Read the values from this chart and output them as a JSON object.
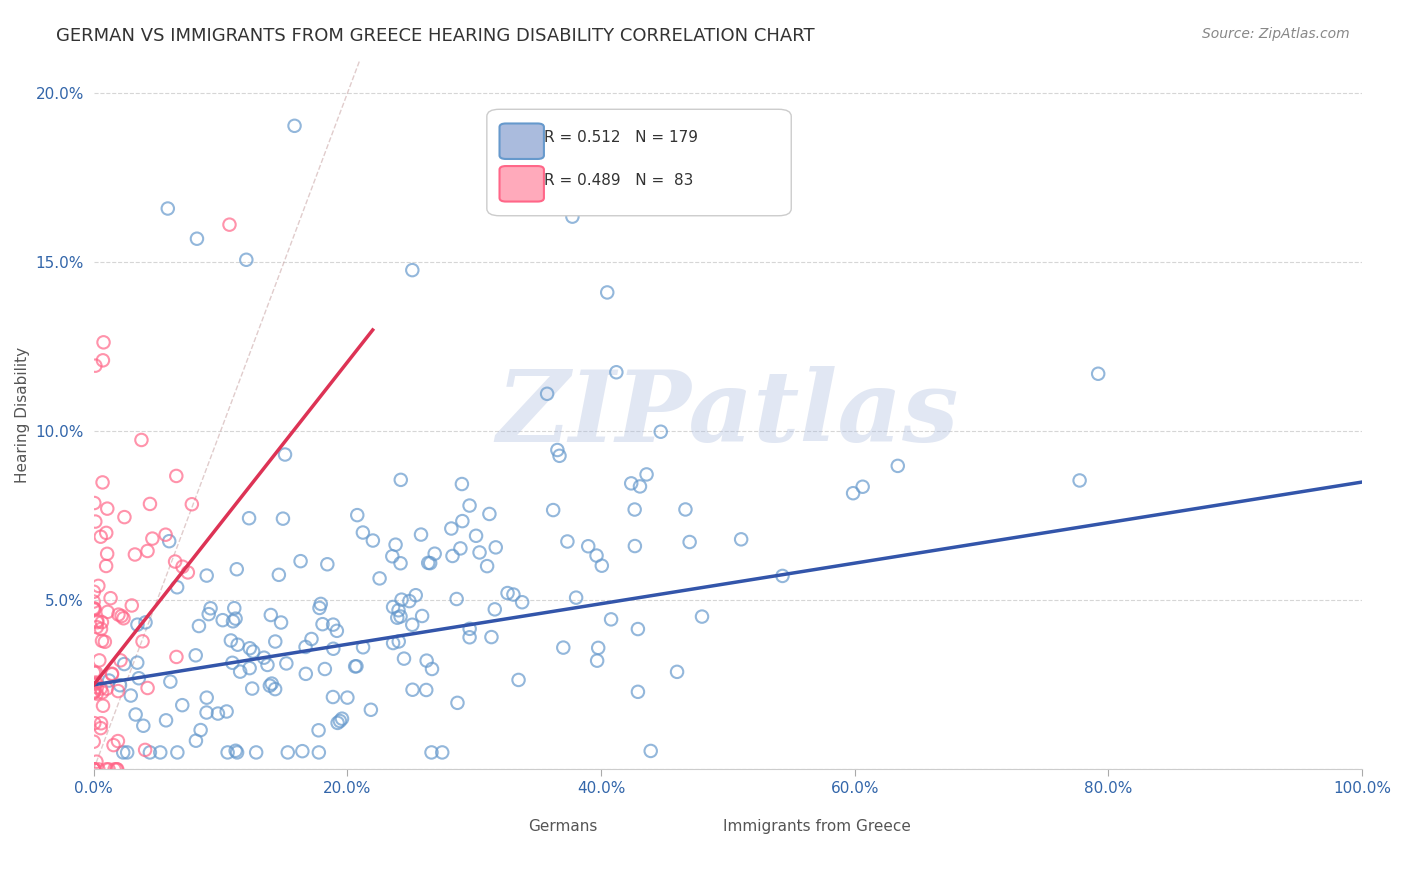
{
  "title": "GERMAN VS IMMIGRANTS FROM GREECE HEARING DISABILITY CORRELATION CHART",
  "source": "Source: ZipAtlas.com",
  "xlabel": "",
  "ylabel": "Hearing Disability",
  "xlim": [
    0.0,
    1.0
  ],
  "ylim": [
    0.0,
    0.21
  ],
  "xticks": [
    0.0,
    0.2,
    0.4,
    0.6,
    0.8,
    1.0
  ],
  "xtick_labels": [
    "0.0%",
    "20.0%",
    "40.0%",
    "60.0%",
    "80.0%",
    "100.0%"
  ],
  "yticks": [
    0.0,
    0.05,
    0.1,
    0.15,
    0.2
  ],
  "ytick_labels": [
    "",
    "5.0%",
    "10.0%",
    "15.0%",
    "20.0%"
  ],
  "german_color": "#6699CC",
  "greek_color": "#FF6688",
  "german_R": 0.512,
  "german_N": 179,
  "greek_R": 0.489,
  "greek_N": 83,
  "watermark": "ZIPatlas",
  "watermark_color": "#AABBDD",
  "legend_labels": [
    "Germans",
    "Immigrants from Greece"
  ],
  "german_seed": 42,
  "greek_seed": 7,
  "title_fontsize": 13,
  "axis_label_fontsize": 11,
  "tick_fontsize": 11,
  "source_fontsize": 10
}
